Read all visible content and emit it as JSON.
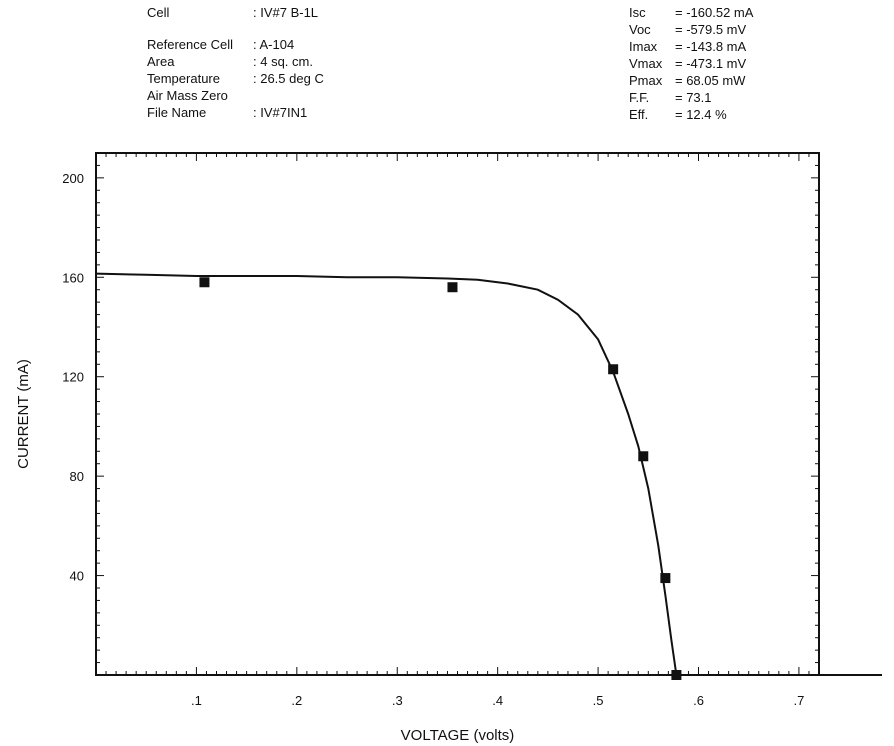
{
  "header_left": {
    "rows": [
      {
        "key": "Cell",
        "value": ": IV#7 B-1L"
      },
      {
        "key": "Reference Cell",
        "value": ": A-104"
      },
      {
        "key": "Area",
        "value": ": 4 sq. cm."
      },
      {
        "key": "Temperature",
        "value": ": 26.5 deg C"
      },
      {
        "key": "Air Mass Zero",
        "value": ""
      },
      {
        "key": "File Name",
        "value": ": IV#7IN1"
      }
    ]
  },
  "header_right": {
    "rows": [
      {
        "key": "Isc",
        "value": "= -160.52 mA"
      },
      {
        "key": "Voc",
        "value": "= -579.5 mV"
      },
      {
        "key": "Imax",
        "value": "= -143.8 mA"
      },
      {
        "key": "Vmax",
        "value": "= -473.1 mV"
      },
      {
        "key": "Pmax",
        "value": "= 68.05 mW"
      },
      {
        "key": "F.F.",
        "value": "= 73.1"
      },
      {
        "key": "Eff.",
        "value": "= 12.4 %"
      }
    ]
  },
  "chart_data": {
    "type": "line",
    "title": "",
    "xlabel": "VOLTAGE (volts)",
    "ylabel": "CURRENT (mA)",
    "xlim": [
      0,
      0.72
    ],
    "ylim": [
      0,
      210
    ],
    "x_ticks": [
      {
        "value": 0.1,
        "label": ".1"
      },
      {
        "value": 0.2,
        "label": ".2"
      },
      {
        "value": 0.3,
        "label": ".3"
      },
      {
        "value": 0.4,
        "label": ".4"
      },
      {
        "value": 0.5,
        "label": ".5"
      },
      {
        "value": 0.6,
        "label": ".6"
      },
      {
        "value": 0.7,
        "label": ".7"
      }
    ],
    "y_ticks": [
      {
        "value": 40,
        "label": "40"
      },
      {
        "value": 80,
        "label": "80"
      },
      {
        "value": 120,
        "label": "120"
      },
      {
        "value": 160,
        "label": "160"
      },
      {
        "value": 200,
        "label": "200"
      }
    ],
    "grid": false,
    "series": [
      {
        "kind": "curve",
        "x": [
          0.0,
          0.05,
          0.1,
          0.15,
          0.2,
          0.25,
          0.3,
          0.35,
          0.38,
          0.41,
          0.44,
          0.46,
          0.48,
          0.5,
          0.515,
          0.53,
          0.54,
          0.55,
          0.56,
          0.567,
          0.573,
          0.578
        ],
        "y": [
          161.5,
          161.0,
          160.5,
          160.5,
          160.5,
          160.0,
          160.0,
          159.5,
          159.0,
          157.5,
          155.0,
          151.0,
          145.0,
          135.0,
          122.0,
          105.0,
          92.0,
          75.0,
          52.0,
          32.0,
          14.0,
          0.0
        ]
      },
      {
        "kind": "markers",
        "x": [
          0.108,
          0.355,
          0.515,
          0.545,
          0.567,
          0.578
        ],
        "y": [
          158.0,
          156.0,
          123.0,
          88.0,
          39.0,
          0.0
        ]
      }
    ]
  }
}
